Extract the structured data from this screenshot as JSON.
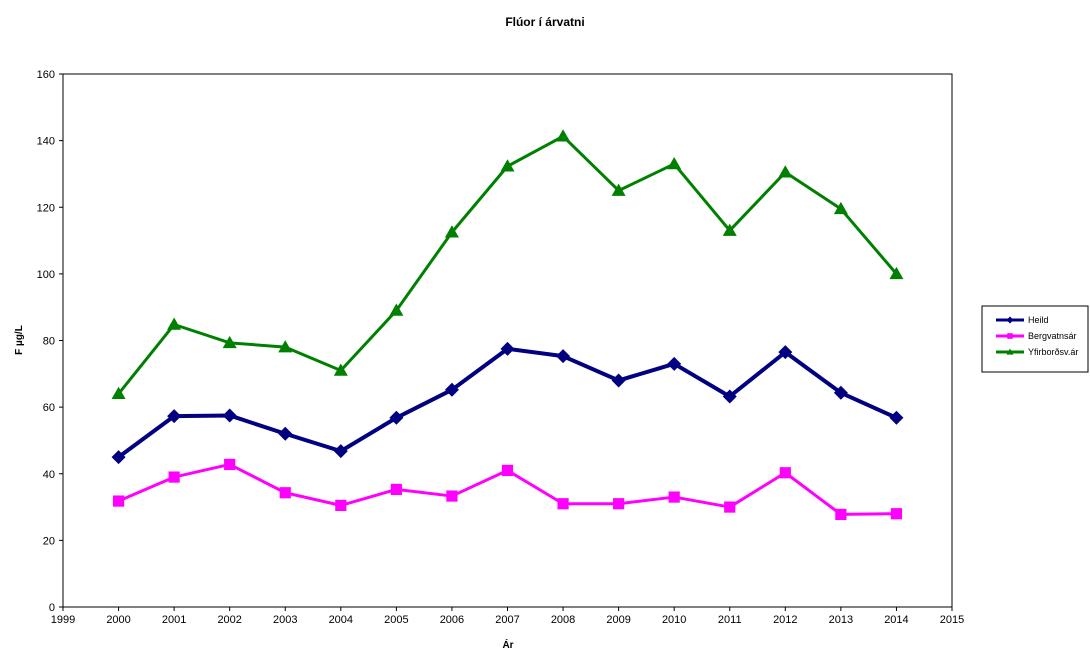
{
  "chart_data": {
    "type": "line",
    "title": "Flúor í árvatni",
    "xlabel": "Ár",
    "ylabel": "F µg/L",
    "xlim": [
      1999,
      2015
    ],
    "ylim": [
      0,
      160
    ],
    "x_ticks": [
      "1999",
      "2000",
      "2001",
      "2002",
      "2003",
      "2004",
      "2005",
      "2006",
      "2007",
      "2008",
      "2009",
      "2010",
      "2011",
      "2012",
      "2013",
      "2014",
      "2015"
    ],
    "y_ticks": [
      "0",
      "20",
      "40",
      "60",
      "80",
      "100",
      "120",
      "140",
      "160"
    ],
    "grid": false,
    "legend_position": "right",
    "x": [
      2000,
      2001,
      2002,
      2003,
      2004,
      2005,
      2006,
      2007,
      2008,
      2009,
      2010,
      2011,
      2012,
      2013,
      2014
    ],
    "series": [
      {
        "name": "Heild",
        "color": "#000080",
        "marker": "diamond",
        "values": [
          45,
          57.3,
          57.5,
          52,
          46.8,
          56.8,
          65.2,
          77.5,
          75.3,
          68,
          73,
          63.2,
          76.5,
          64.3,
          56.8
        ]
      },
      {
        "name": "Bergvatnsár",
        "color": "#FF00FF",
        "marker": "square",
        "values": [
          31.8,
          39,
          42.8,
          34.3,
          30.5,
          35.3,
          33.3,
          41,
          31,
          31,
          33,
          30,
          40.3,
          27.8,
          28
        ]
      },
      {
        "name": "Yfirborðsv.ár",
        "color": "#008000",
        "marker": "triangle",
        "values": [
          64,
          84.8,
          79.3,
          78,
          71,
          89,
          112.5,
          132.3,
          141.3,
          125,
          133,
          113,
          130.5,
          119.5,
          100
        ]
      }
    ]
  }
}
